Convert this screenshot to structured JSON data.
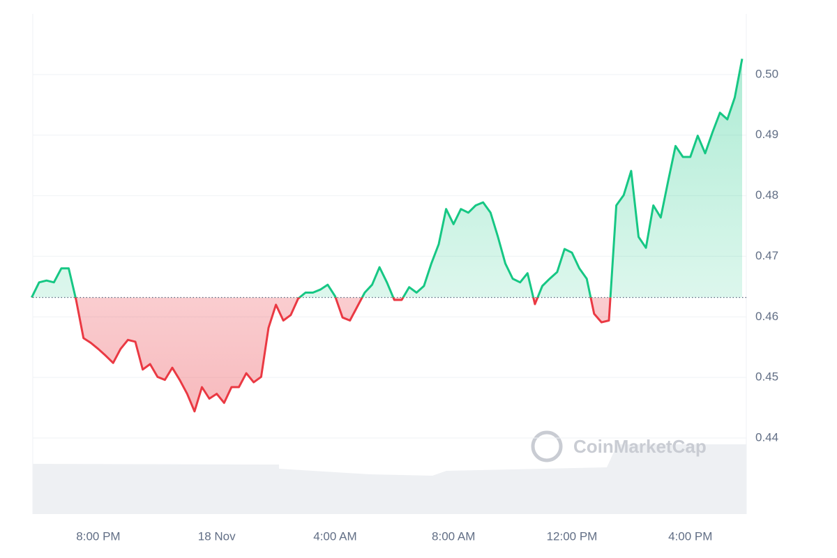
{
  "chart_data": {
    "type": "line",
    "categories": [
      null,
      null,
      null,
      null,
      null,
      null,
      null,
      null,
      null,
      "8:00 PM",
      null,
      null,
      null,
      null,
      null,
      null,
      null,
      null,
      null,
      null,
      null,
      null,
      null,
      null,
      null,
      "18 Nov",
      null,
      null,
      null,
      null,
      null,
      null,
      null,
      null,
      null,
      null,
      null,
      null,
      null,
      null,
      null,
      "4:00 AM",
      null,
      null,
      null,
      null,
      null,
      null,
      null,
      null,
      null,
      null,
      null,
      null,
      null,
      null,
      null,
      "8:00 AM",
      null,
      null,
      null,
      null,
      null,
      null,
      null,
      null,
      null,
      null,
      null,
      null,
      null,
      null,
      null,
      "12:00 PM",
      null,
      null,
      null,
      null,
      null,
      null,
      null,
      null,
      null,
      null,
      null,
      null,
      null,
      null,
      null,
      "4:00 PM",
      null,
      null,
      null,
      null,
      null,
      null,
      null
    ],
    "values": [
      0.4632,
      0.4657,
      0.466,
      0.4657,
      0.468,
      0.468,
      0.4628,
      0.4565,
      0.4557,
      0.4547,
      0.4536,
      0.4524,
      0.4547,
      0.4562,
      0.4559,
      0.4513,
      0.4522,
      0.4501,
      0.4496,
      0.4516,
      0.4496,
      0.4473,
      0.4444,
      0.4484,
      0.4465,
      0.4473,
      0.4458,
      0.4484,
      0.4484,
      0.4507,
      0.4492,
      0.4501,
      0.4582,
      0.462,
      0.4594,
      0.4603,
      0.463,
      0.464,
      0.464,
      0.4645,
      0.4653,
      0.4634,
      0.4599,
      0.4594,
      0.4617,
      0.464,
      0.4653,
      0.4682,
      0.4657,
      0.4628,
      0.4628,
      0.4649,
      0.464,
      0.4651,
      0.4688,
      0.472,
      0.4778,
      0.4753,
      0.4778,
      0.4772,
      0.4784,
      0.4789,
      0.4772,
      0.4732,
      0.4688,
      0.4663,
      0.4657,
      0.4672,
      0.4621,
      0.4651,
      0.4663,
      0.4674,
      0.4712,
      0.4706,
      0.468,
      0.4663,
      0.4605,
      0.4591,
      0.4594,
      0.4784,
      0.4801,
      0.4841,
      0.4732,
      0.4714,
      0.4784,
      0.4764,
      0.4824,
      0.4882,
      0.4864,
      0.4864,
      0.4899,
      0.487,
      0.4905,
      0.4937,
      0.4926,
      0.4962,
      0.5026
    ],
    "baseline": 0.4632,
    "up_color": "#16c784",
    "down_color": "#ea3943",
    "ylim": [
      0.42745,
      0.51
    ],
    "yticks": [
      0.44,
      0.45,
      0.46,
      0.47,
      0.48,
      0.49,
      {
        "value": 0.5,
        "label": "0.50"
      }
    ],
    "grid": true,
    "watermark": "CoinMarketCap"
  }
}
